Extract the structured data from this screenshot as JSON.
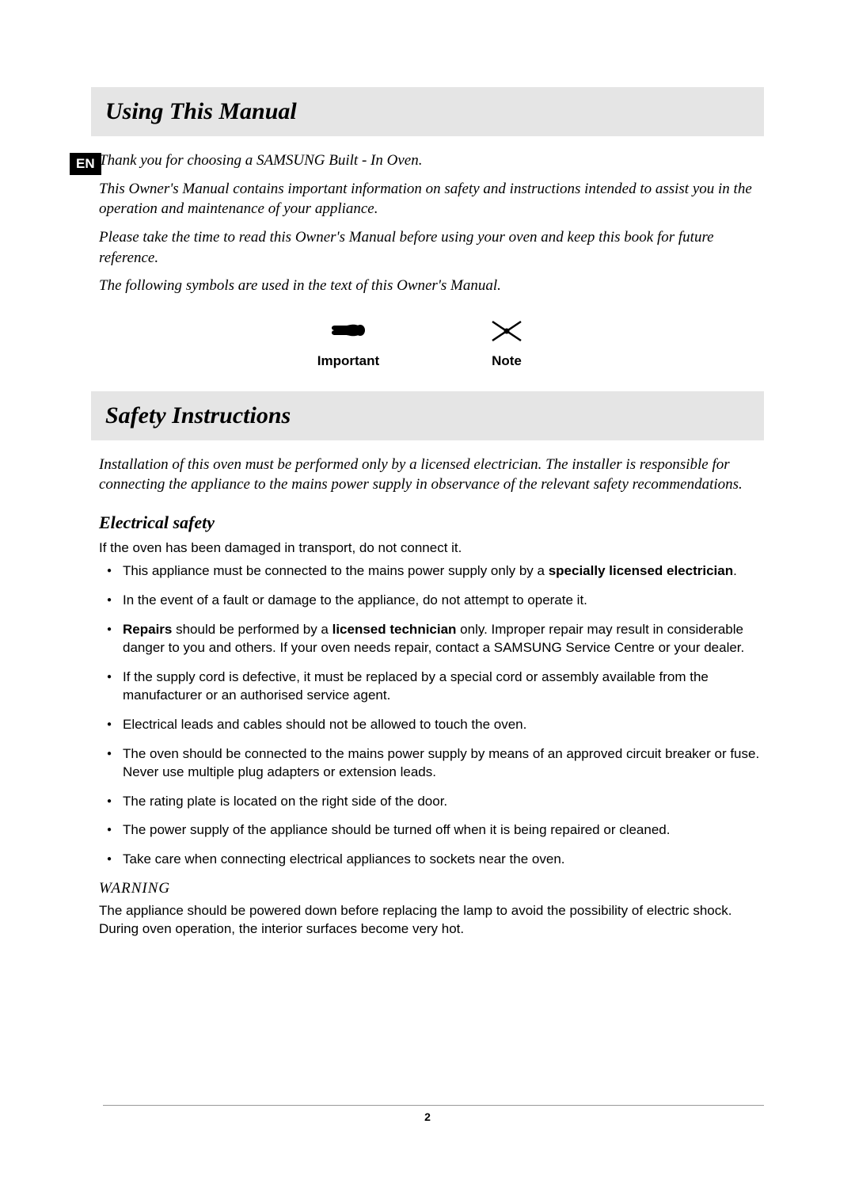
{
  "lang_badge": "EN",
  "section1": {
    "title": "Using This Manual",
    "intro": [
      "Thank you for choosing a SAMSUNG Built - In Oven.",
      "This Owner's Manual contains important information on safety and instructions intended to assist you in the operation and maintenance of your appliance.",
      "Please take the time to read this Owner's Manual before using your oven and keep this book for future reference.",
      "The following symbols are used in the text of this Owner's Manual."
    ]
  },
  "symbols": {
    "important": {
      "label": "Important",
      "icon": "hand-pointing-icon"
    },
    "note": {
      "label": "Note",
      "icon": "envelope-icon"
    }
  },
  "section2": {
    "title": "Safety Instructions",
    "intro": "Installation of this oven must be performed only by a licensed electrician. The installer is responsible for connecting the appliance to the mains power supply in observance of the relevant safety recommendations.",
    "subheading": "Electrical safety",
    "lead": "If the oven has been damaged in transport, do not connect it.",
    "bullets_html": [
      "This appliance must be connected to the mains power supply only by a <span class=\"bold\">specially licensed electrician</span>.",
      "In the event of a fault or damage to the appliance, do not attempt to operate it.",
      "<span class=\"bold\">Repairs</span> should be performed by a <span class=\"bold\">licensed technician</span> only. Improper repair may result in considerable danger to you and others. If your oven needs repair, contact a SAMSUNG Service Centre or your dealer.",
      "If the supply cord is defective, it must be replaced by a special cord or assembly available from the manufacturer or an authorised service agent.",
      "Electrical leads and cables should not be allowed to touch the oven.",
      "The oven should be connected to the mains power supply by means of an approved circuit breaker or fuse. Never use multiple plug adapters or extension leads.",
      "The rating plate is located on the right side of the door.",
      "The power supply of the appliance should be turned off when it is being repaired or cleaned.",
      "Take care when connecting electrical appliances to sockets near the oven."
    ],
    "warning_label": "WARNING",
    "warning_text": "The appliance should be powered down before replacing the lamp to avoid the possibility of electric shock. During oven operation, the interior surfaces become very hot."
  },
  "page_number": "2",
  "colors": {
    "header_bg": "#e5e5e5",
    "badge_bg": "#000000",
    "badge_fg": "#ffffff",
    "text": "#000000",
    "rule": "#999999"
  }
}
